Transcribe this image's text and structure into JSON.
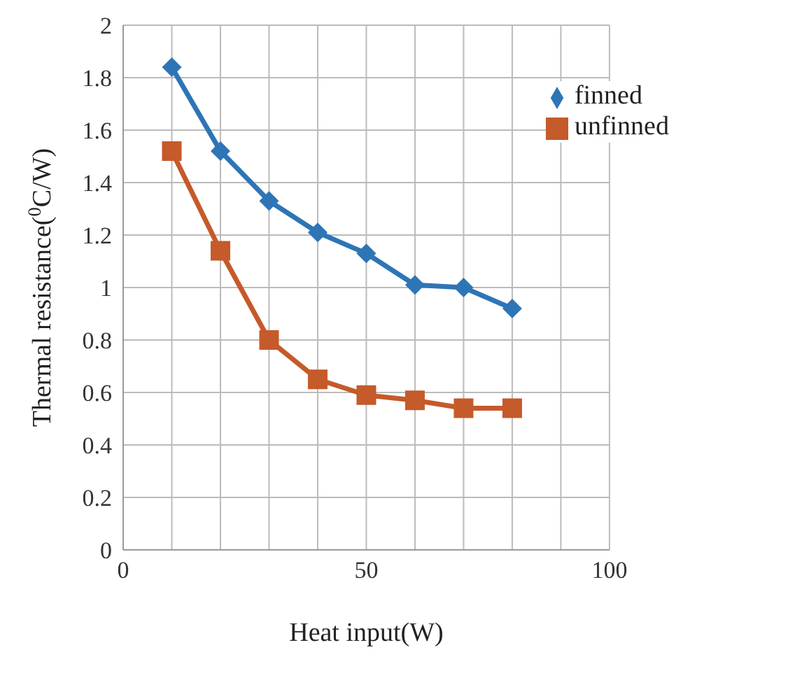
{
  "chart_data": {
    "type": "line",
    "xlabel": "Heat input(W)",
    "ylabel": "Thermal resistance($^{0}$C/W)",
    "xlim": [
      0,
      100
    ],
    "xticks": [
      0,
      {
        "value": 10,
        "label": null
      },
      {
        "value": 20,
        "label": null
      },
      {
        "value": 30,
        "label": null
      },
      {
        "value": 40,
        "label": null
      },
      50,
      {
        "value": 60,
        "label": null
      },
      {
        "value": 70,
        "label": null
      },
      {
        "value": 80,
        "label": null
      },
      {
        "value": 90,
        "label": null
      },
      100
    ],
    "ylim": [
      0,
      2
    ],
    "yticks": [
      0,
      0.2,
      0.4,
      0.6,
      0.8,
      1,
      1.2,
      1.4,
      1.6,
      1.8,
      2
    ],
    "grid": true,
    "legend": "top right",
    "line_style": "solid",
    "x": [
      10,
      20,
      30,
      40,
      50,
      60,
      70,
      80
    ],
    "series": [
      {
        "name": "finned",
        "color": "#2e75b6",
        "marker": "diamond",
        "values": [
          1.84,
          1.52,
          1.33,
          1.21,
          1.13,
          1.01,
          1.0,
          0.92
        ]
      },
      {
        "name": "unfinned",
        "color": "#c55a2a",
        "marker": "square",
        "values": [
          1.52,
          1.14,
          0.8,
          0.65,
          0.59,
          0.57,
          0.54,
          0.54
        ]
      }
    ]
  }
}
